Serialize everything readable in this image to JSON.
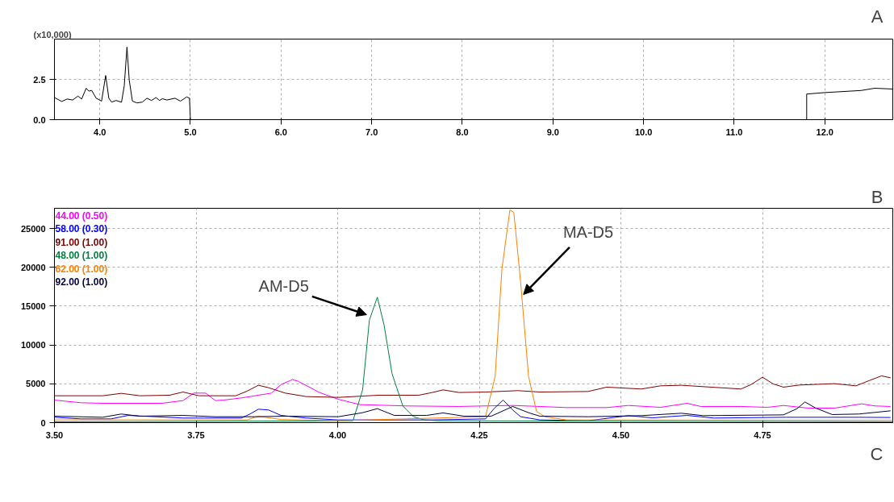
{
  "chart_data": [
    {
      "type": "line",
      "ylabel": "(x10,000)",
      "annotations": [
        "A"
      ],
      "xlim": [
        3.5,
        12.75
      ],
      "ylim": [
        0,
        5
      ],
      "xticks": [
        {
          "value": 4,
          "label": "4.0"
        },
        {
          "value": 5,
          "label": "5.0"
        },
        {
          "value": 6,
          "label": "6.0"
        },
        {
          "value": 7,
          "label": "7.0"
        },
        {
          "value": 8,
          "label": "8.0"
        },
        {
          "value": 9,
          "label": "9.0"
        },
        {
          "value": 10,
          "label": "10.0"
        },
        {
          "value": 11,
          "label": "11.0"
        },
        {
          "value": 12,
          "label": "12.0"
        }
      ],
      "yticks": [
        {
          "value": 0,
          "label": "0.0"
        },
        {
          "value": 2.5,
          "label": "2.5"
        }
      ],
      "grid": true,
      "line_style": "solid",
      "series": [
        {
          "color": "#000000",
          "x": [
            3.5,
            3.58,
            3.64,
            3.7,
            3.76,
            3.8,
            3.85,
            3.88,
            3.91,
            3.96,
            4.02,
            4.065,
            4.1,
            4.13,
            4.18,
            4.24,
            4.27,
            4.3,
            4.325,
            4.36,
            4.41,
            4.47,
            4.52,
            4.57,
            4.62,
            4.66,
            4.69,
            4.74,
            4.83,
            4.89,
            4.96,
            4.99,
            5.0,
            11.8,
            11.8,
            12.0,
            12.4,
            12.55,
            12.75
          ],
          "values": [
            1.37,
            1.13,
            1.28,
            1.22,
            1.46,
            1.28,
            1.95,
            1.77,
            1.82,
            1.33,
            1.15,
            2.74,
            1.33,
            1.09,
            1.19,
            1.08,
            2.1,
            4.5,
            2.46,
            1.15,
            1.04,
            1.09,
            1.33,
            1.19,
            1.37,
            1.19,
            1.3,
            1.22,
            1.33,
            1.15,
            1.41,
            1.33,
            0,
            0,
            1.59,
            1.68,
            1.81,
            1.95,
            1.9
          ]
        }
      ]
    },
    {
      "type": "line",
      "annotations": [
        "B",
        "C",
        {
          "text": "AM-D5",
          "x": 4.051,
          "y": 13900
        },
        {
          "text": "MA-D5",
          "x": 4.328,
          "y": 16500
        }
      ],
      "xlim": [
        3.5,
        4.98
      ],
      "ylim": [
        0,
        27600
      ],
      "xticks": [
        {
          "value": 3.5,
          "label": "3.50"
        },
        {
          "value": 3.75,
          "label": "3.75"
        },
        {
          "value": 4,
          "label": "4.00"
        },
        {
          "value": 4.25,
          "label": "4.25"
        },
        {
          "value": 4.5,
          "label": "4.50"
        },
        {
          "value": 4.75,
          "label": "4.75"
        }
      ],
      "yticks": [
        0,
        5000,
        10000,
        15000,
        20000,
        25000
      ],
      "grid": true,
      "legend": "top left",
      "line_style": "solid",
      "series": [
        {
          "name": "44.00 (0.50)",
          "color": "#ff00ff",
          "x": [
            3.5,
            3.547,
            3.585,
            3.69,
            3.727,
            3.746,
            3.767,
            3.784,
            3.798,
            3.83,
            3.86,
            3.883,
            3.9,
            3.92,
            3.93,
            3.968,
            4.001,
            4.039,
            4.12,
            4.214,
            4.26,
            4.309,
            4.357,
            4.404,
            4.442,
            4.475,
            4.513,
            4.57,
            4.617,
            4.641,
            4.712,
            4.759,
            4.787,
            4.83,
            4.877,
            4.925,
            4.948,
            4.976
          ],
          "values": [
            2900,
            2560,
            2490,
            2490,
            2840,
            3810,
            3800,
            2840,
            2900,
            3180,
            3530,
            3800,
            4900,
            5540,
            5330,
            3880,
            3010,
            2320,
            2150,
            2080,
            2150,
            2210,
            2080,
            1940,
            1940,
            1940,
            2210,
            1970,
            2490,
            2080,
            2080,
            1970,
            2210,
            1870,
            1870,
            2420,
            2150,
            2080
          ]
        },
        {
          "name": "58.00 (0.30)",
          "color": "#0000ff",
          "x": [
            3.5,
            3.547,
            3.6,
            3.63,
            3.727,
            3.765,
            3.83,
            3.845,
            3.86,
            3.878,
            3.9,
            3.944,
            4.001,
            4.167,
            4.261,
            4.276,
            4.292,
            4.309,
            4.323,
            4.357,
            4.442,
            4.513,
            4.556,
            4.617,
            4.664,
            4.792,
            4.92,
            4.976
          ],
          "values": [
            690,
            480,
            480,
            930,
            590,
            590,
            590,
            1110,
            1730,
            1630,
            930,
            590,
            350,
            350,
            480,
            1800,
            2910,
            1630,
            760,
            350,
            240,
            900,
            620,
            930,
            590,
            690,
            690,
            660
          ]
        },
        {
          "name": "91.00 (1.00)",
          "color": "#800000",
          "x": [
            3.5,
            3.585,
            3.618,
            3.651,
            3.703,
            3.727,
            3.755,
            3.82,
            3.84,
            3.86,
            3.878,
            3.907,
            3.944,
            4.001,
            4.072,
            4.143,
            4.167,
            4.186,
            4.214,
            4.261,
            4.318,
            4.357,
            4.442,
            4.475,
            4.536,
            4.57,
            4.607,
            4.712,
            4.73,
            4.75,
            4.769,
            4.787,
            4.815,
            4.877,
            4.915,
            4.939,
            4.96,
            4.976
          ],
          "values": [
            3460,
            3460,
            3770,
            3460,
            3530,
            3940,
            3460,
            3460,
            4050,
            4810,
            4500,
            3810,
            3360,
            3250,
            3530,
            3530,
            3880,
            4220,
            3880,
            3940,
            4120,
            3940,
            4010,
            4570,
            4330,
            4740,
            4810,
            4330,
            4910,
            5850,
            4980,
            4570,
            4840,
            5020,
            4740,
            5430,
            6020,
            5780
          ]
        },
        {
          "name": "48.00 (1.00)",
          "color": "#008040",
          "x": [
            3.5,
            4.027,
            4.044,
            4.056,
            4.07,
            4.082,
            4.096,
            4.115,
            4.134,
            4.153,
            4.177,
            4.98
          ],
          "values": [
            100,
            240,
            4220,
            13200,
            16160,
            12530,
            6300,
            2150,
            760,
            350,
            240,
            100
          ]
        },
        {
          "name": "62.00 (1.00)",
          "color": "#ff8000",
          "x": [
            3.5,
            3.84,
            3.86,
            3.9,
            4.0,
            4.261,
            4.278,
            4.29,
            4.304,
            4.311,
            4.323,
            4.337,
            4.351,
            4.366,
            4.404,
            4.98
          ],
          "values": [
            350,
            350,
            830,
            400,
            250,
            760,
            5950,
            19800,
            27400,
            27060,
            18060,
            5950,
            1450,
            760,
            350,
            300
          ]
        },
        {
          "name": "92.00 (1.00)",
          "color": "#000040",
          "x": [
            3.5,
            3.585,
            3.618,
            3.651,
            3.727,
            3.784,
            3.855,
            3.907,
            4.001,
            4.044,
            4.07,
            4.1,
            4.157,
            4.186,
            4.223,
            4.271,
            4.309,
            4.337,
            4.357,
            4.442,
            4.536,
            4.607,
            4.645,
            4.787,
            4.811,
            4.825,
            4.844,
            4.873,
            4.92,
            4.976
          ],
          "values": [
            830,
            690,
            1110,
            830,
            930,
            760,
            760,
            830,
            760,
            1280,
            1800,
            930,
            930,
            1250,
            830,
            830,
            2080,
            1280,
            830,
            760,
            900,
            1210,
            900,
            1000,
            1800,
            2660,
            1870,
            1040,
            1110,
            1520
          ]
        }
      ]
    }
  ]
}
